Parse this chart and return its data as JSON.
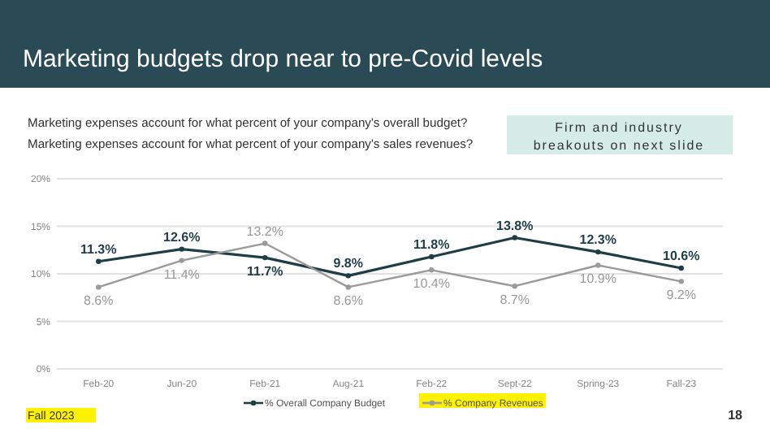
{
  "chart_data": {
    "type": "line",
    "title": "Marketing budgets drop near to pre-Covid levels",
    "subtitle": "Marketing expenses account for what percent of your company's overall budget?\nMarketing expenses account for what percent of your company's sales revenues?",
    "annotations": [
      "Firm and industry breakouts on next slide",
      "Fall 2023",
      "18"
    ],
    "categories": [
      "Feb-20",
      "Jun-20",
      "Feb-21",
      "Aug-21",
      "Feb-22",
      "Sept-22",
      "Spring-23",
      "Fall-23"
    ],
    "series": [
      {
        "name": "% Overall Company Budget",
        "color": "#1f3d47",
        "values": [
          11.3,
          12.6,
          11.7,
          9.8,
          11.8,
          13.8,
          12.3,
          10.6
        ],
        "value_labels": [
          "11.3%",
          "12.6%",
          "11.7%",
          "9.8%",
          "11.8%",
          "13.8%",
          "12.3%",
          "10.6%"
        ]
      },
      {
        "name": "% Company Revenues",
        "color": "#9a9a9a",
        "values": [
          8.6,
          11.4,
          13.2,
          8.6,
          10.4,
          8.7,
          10.9,
          9.2
        ],
        "value_labels": [
          "8.6%",
          "11.4%",
          "13.2%",
          "8.6%",
          "10.4%",
          "8.7%",
          "10.9%",
          "9.2%"
        ]
      }
    ],
    "ylim": [
      0,
      20
    ],
    "yticks": [
      {
        "value": 0,
        "label": "0%"
      },
      {
        "value": 5,
        "label": "5%"
      },
      {
        "value": 10,
        "label": "10%"
      },
      {
        "value": 15,
        "label": "15%"
      },
      {
        "value": 20,
        "label": "20%"
      }
    ],
    "grid": "y",
    "legend": "bottom",
    "marker": "circle",
    "line_style": "solid"
  }
}
